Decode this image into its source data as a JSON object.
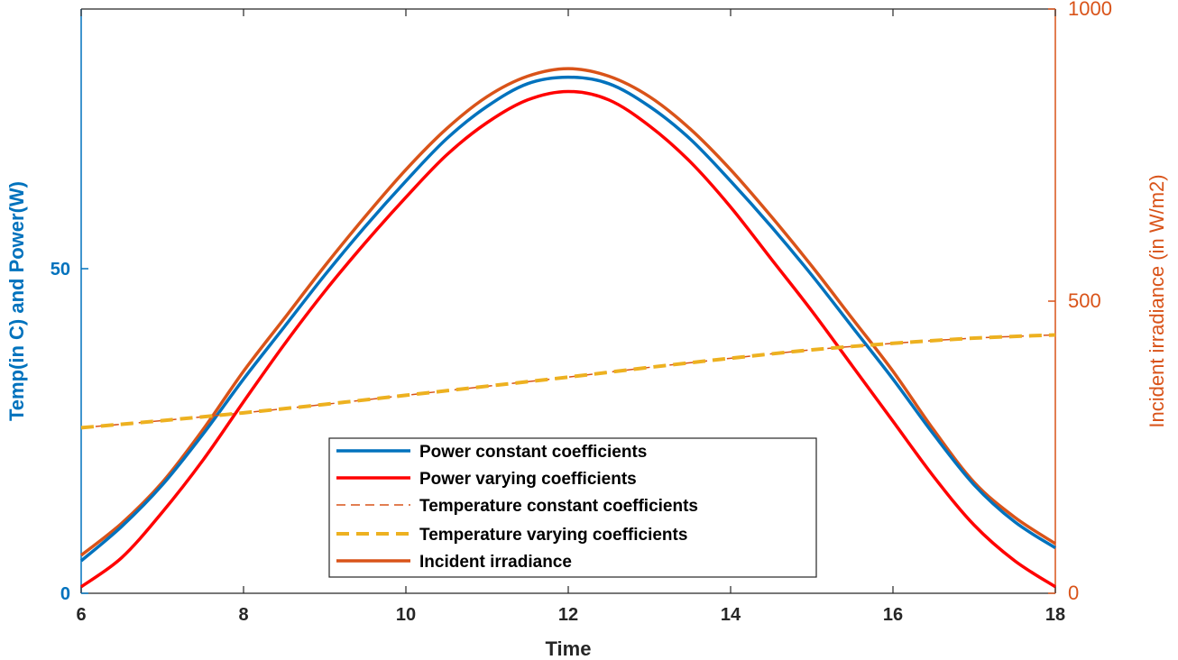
{
  "chart_data": {
    "type": "line",
    "title": "",
    "xlabel": "Time",
    "ylabel_left": "Temp(in C) and Power(W)",
    "ylabel_right": "Incident irradiance (in W/m2)",
    "xlim": [
      6,
      18
    ],
    "ylim_left": [
      0,
      90
    ],
    "ylim_right": [
      0,
      1000
    ],
    "x_ticks": [
      6,
      8,
      10,
      12,
      14,
      16,
      18
    ],
    "y_left_ticks": [
      0,
      50
    ],
    "y_right_ticks": [
      0,
      500,
      1000
    ],
    "grid": false,
    "legend_position": "bottom-center",
    "colors": {
      "left_axis": "#0072BD",
      "right_axis": "#D95319"
    },
    "series": [
      {
        "name": "Power constant coefficients",
        "axis": "left",
        "color": "#0072BD",
        "style": "solid",
        "x": [
          6,
          6.5,
          7,
          7.5,
          8,
          8.5,
          9,
          9.5,
          10,
          10.5,
          11,
          11.5,
          12,
          12.5,
          13,
          13.5,
          14,
          14.5,
          15,
          15.5,
          16,
          16.5,
          17,
          17.5,
          18
        ],
        "values": [
          5.0,
          10.3,
          16.7,
          24.5,
          33.0,
          41.0,
          49.0,
          56.5,
          63.5,
          70.0,
          75.0,
          78.5,
          79.5,
          78.5,
          75.0,
          70.0,
          63.5,
          56.5,
          49.0,
          41.0,
          33.0,
          24.5,
          16.7,
          11.0,
          7.0
        ]
      },
      {
        "name": "Power varying coefficients",
        "axis": "left",
        "color": "#FF0000",
        "style": "solid",
        "x": [
          6,
          6.5,
          7,
          7.5,
          8,
          8.5,
          9,
          9.5,
          10,
          10.5,
          11,
          11.5,
          12,
          12.5,
          13,
          13.5,
          14,
          14.5,
          15,
          15.5,
          16,
          16.5,
          17,
          17.5,
          18
        ],
        "values": [
          1.0,
          5.5,
          12.5,
          20.5,
          29.5,
          38.3,
          46.5,
          54.0,
          61.0,
          67.5,
          72.5,
          76.0,
          77.3,
          76.0,
          72.0,
          66.5,
          59.5,
          51.5,
          43.5,
          35.0,
          26.5,
          18.0,
          10.5,
          5.0,
          1.0
        ]
      },
      {
        "name": "Temperature constant coefficients",
        "axis": "left",
        "color": "#D95319",
        "style": "dashed-thin",
        "x": [
          6,
          7,
          8,
          9,
          10,
          11,
          12,
          13,
          14,
          15,
          16,
          17,
          18
        ],
        "values": [
          25.5,
          26.6,
          27.8,
          29.1,
          30.5,
          31.9,
          33.3,
          34.8,
          36.2,
          37.5,
          38.5,
          39.3,
          39.8
        ]
      },
      {
        "name": "Temperature varying coefficients",
        "axis": "left",
        "color": "#EDB120",
        "style": "dashed-thick",
        "x": [
          6,
          7,
          8,
          9,
          10,
          11,
          12,
          13,
          14,
          15,
          16,
          17,
          18
        ],
        "values": [
          25.5,
          26.6,
          27.8,
          29.1,
          30.5,
          31.9,
          33.3,
          34.8,
          36.2,
          37.5,
          38.5,
          39.3,
          39.8
        ]
      },
      {
        "name": "Incident irradiance",
        "axis": "right",
        "color": "#D95319",
        "style": "solid",
        "x": [
          6,
          6.5,
          7,
          7.5,
          8,
          8.5,
          9,
          9.5,
          10,
          10.5,
          11,
          11.5,
          12,
          12.5,
          13,
          13.5,
          14,
          14.5,
          15,
          15.5,
          16,
          16.5,
          17,
          17.5,
          18
        ],
        "values": [
          65,
          120,
          190,
          280,
          380,
          470,
          560,
          645,
          725,
          795,
          850,
          885,
          898,
          885,
          850,
          795,
          725,
          645,
          560,
          470,
          380,
          280,
          190,
          130,
          85
        ]
      }
    ]
  }
}
